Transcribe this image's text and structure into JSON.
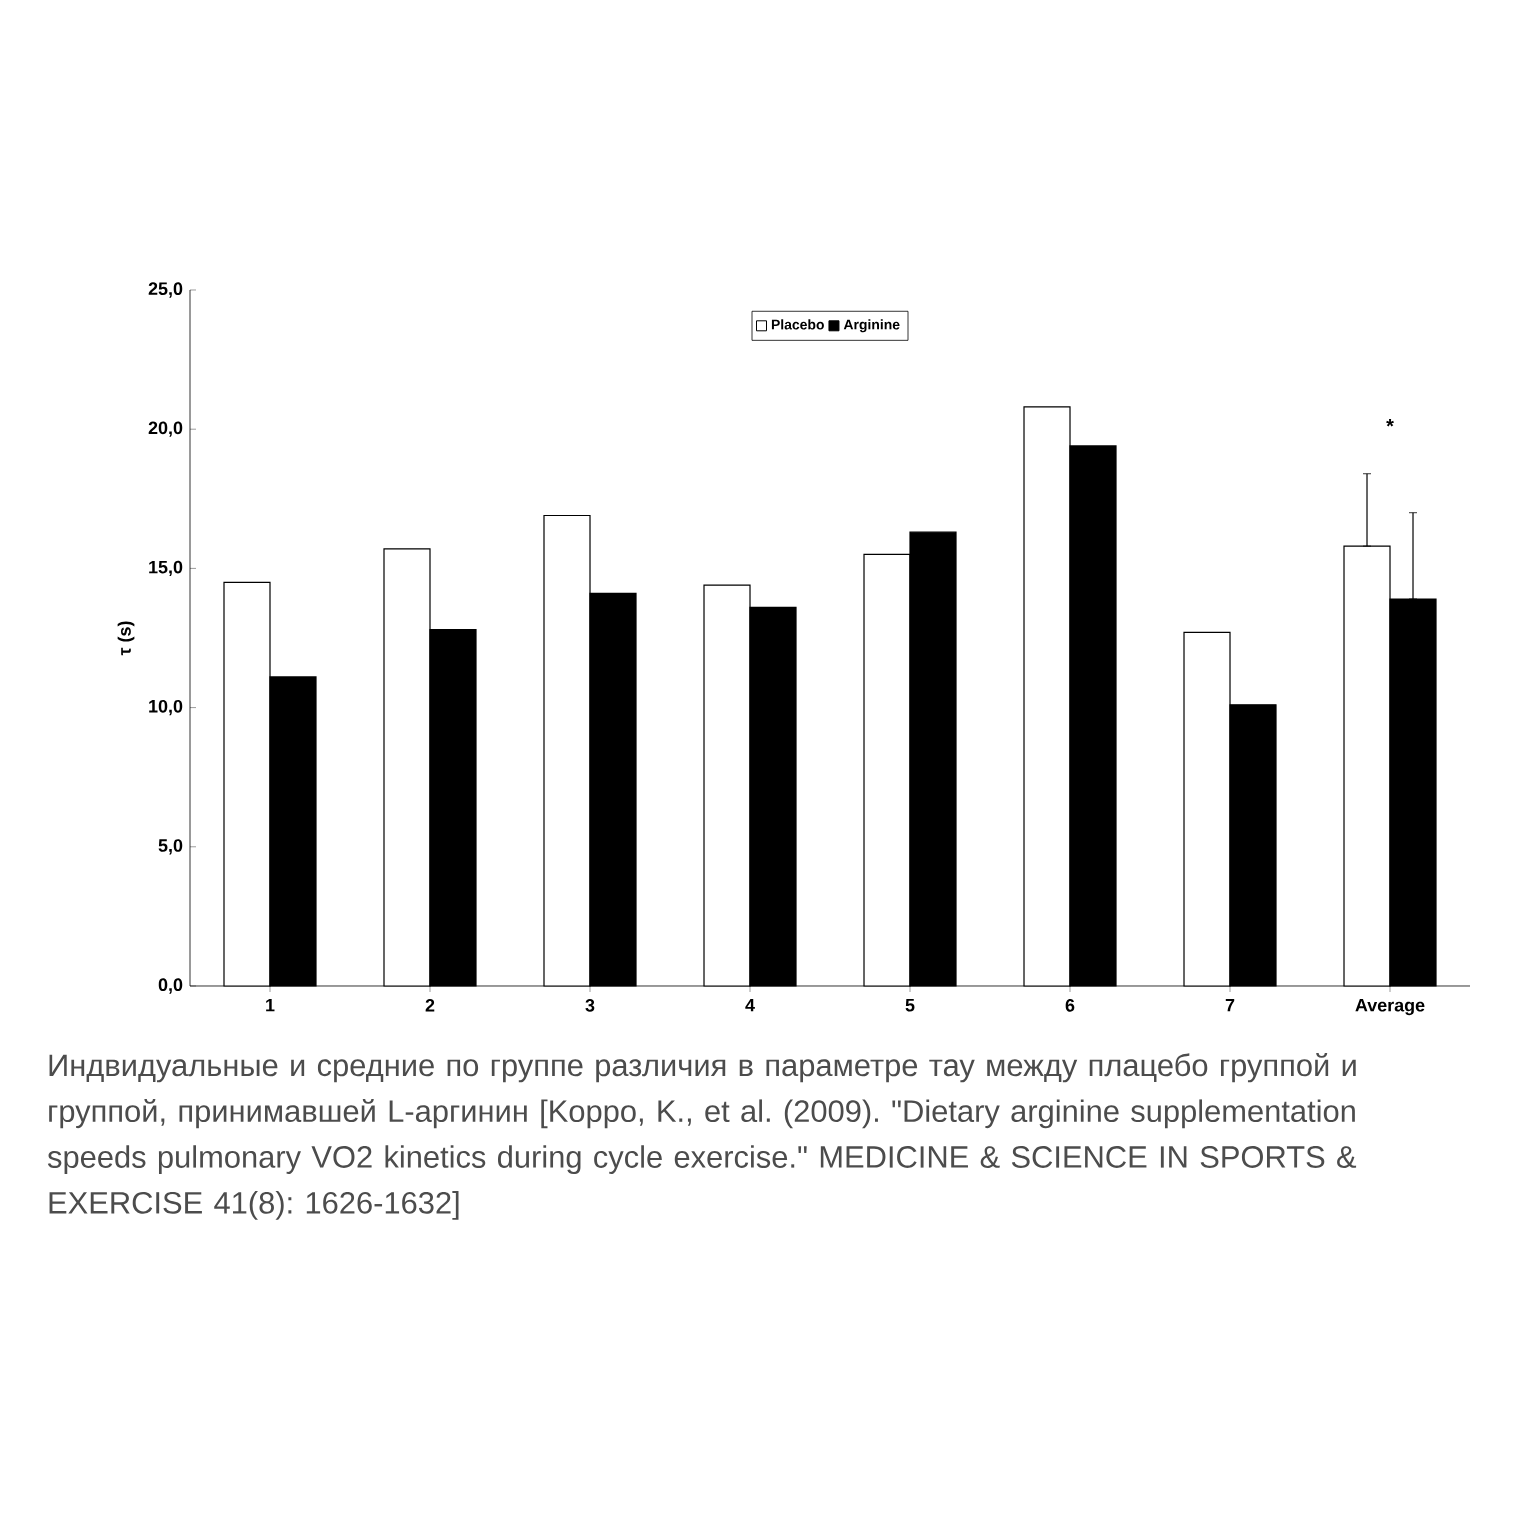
{
  "chart_data": {
    "type": "bar",
    "ylabel": "τ (s)",
    "categories": [
      "1",
      "2",
      "3",
      "4",
      "5",
      "6",
      "7",
      "Average"
    ],
    "series": [
      {
        "name": "Placebo",
        "color": "#ffffff",
        "values": [
          14.5,
          15.7,
          16.9,
          14.4,
          15.5,
          20.8,
          12.7,
          15.8
        ],
        "errors": [
          null,
          null,
          null,
          null,
          null,
          null,
          null,
          [
            15.8,
            18.4
          ]
        ]
      },
      {
        "name": "Arginine",
        "color": "#000000",
        "values": [
          11.1,
          12.8,
          14.1,
          13.6,
          16.3,
          19.4,
          10.1,
          13.9
        ],
        "errors": [
          null,
          null,
          null,
          null,
          null,
          null,
          null,
          [
            13.9,
            17.0
          ]
        ]
      }
    ],
    "ylim": [
      0,
      25
    ],
    "yticks": [
      {
        "value": 0,
        "label": "0,0"
      },
      {
        "value": 5,
        "label": "5,0"
      },
      {
        "value": 10,
        "label": "10,0"
      },
      {
        "value": 15,
        "label": "15,0"
      },
      {
        "value": 20,
        "label": "20,0"
      },
      {
        "value": 25,
        "label": "25,0"
      }
    ],
    "grid": false,
    "legend": "top",
    "annotations": [
      "*",
      "Индвидуальные и средние по группе различия в параметре тау между плацебо группой и группой, принимавшей L-аргинин [Koppo, K., et al. (2009). \"Dietary arginine supplementation speeds pulmonary VO2 kinetics during cycle exercise.\" MEDICINE & SCIENCE IN SPORTS & EXERCISE 41(8): 1626-1632]"
    ]
  }
}
